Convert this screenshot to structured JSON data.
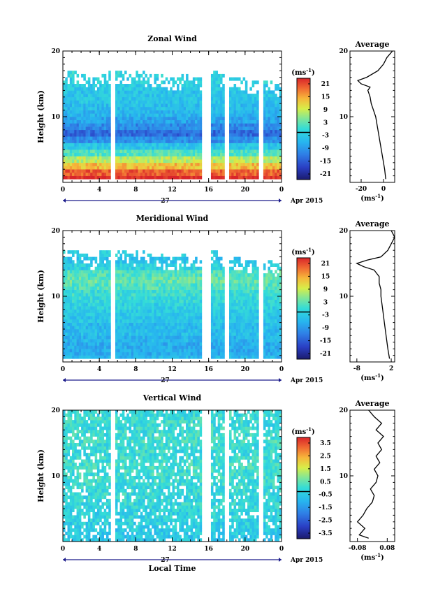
{
  "chart_data": [
    {
      "type": "heatmap",
      "id": "zonal",
      "title": "Zonal Wind",
      "ylabel": "Height (km)",
      "ylim": [
        0,
        20
      ],
      "xlim": [
        0,
        24
      ],
      "x_ticks": [
        "0",
        "4",
        "8",
        "12",
        "16",
        "20",
        "0"
      ],
      "y_ticks": [
        "10",
        "20"
      ],
      "date_label": "27",
      "month_label": "Apr 2015",
      "xlabel": "",
      "colorbar": {
        "unit": "(ms",
        "unit_sup": "-1",
        "unit_close": ")",
        "ticks": [
          "21",
          "15",
          "9",
          "3",
          "-3",
          "-9",
          "-15",
          "-21"
        ],
        "zero_mark": 0
      },
      "gaps_hours": [
        [
          5.3,
          5.8
        ],
        [
          15.2,
          16.3
        ],
        [
          17.8,
          18.2
        ],
        [
          21.6,
          22.0
        ]
      ],
      "data_top_km": [
        17,
        17,
        16.5,
        16,
        17,
        17,
        17,
        16.5,
        17,
        16.5,
        16.5,
        16,
        16,
        16.5,
        16,
        16,
        17,
        16.5,
        16,
        16,
        15.5,
        15.5,
        15.5,
        15
      ],
      "profile_rows": [
        24,
        20,
        14,
        8,
        2,
        -4,
        -10,
        -14,
        -11,
        -8,
        -6,
        -5,
        -4,
        -4,
        -3,
        -2,
        -1,
        0,
        1,
        2
      ],
      "average": {
        "title": "Average",
        "xlim": [
          -30,
          10
        ],
        "x_ticks": [
          "-20",
          "0"
        ],
        "x_tick_values": [
          -20,
          0
        ],
        "unit": "(ms",
        "unit_sup": "-1",
        "unit_close": ")",
        "y_ticks": [
          "10",
          "20"
        ],
        "heights": [
          0.5,
          2,
          4,
          6,
          8,
          10,
          11,
          12,
          13,
          13.5,
          14,
          14.5,
          15,
          15.5,
          16,
          17,
          18,
          19,
          20
        ],
        "values": [
          2,
          1,
          -1,
          -3,
          -5,
          -7,
          -9,
          -11,
          -12,
          -13,
          -14,
          -12,
          -20,
          -23,
          -15,
          -5,
          0,
          3,
          8
        ]
      }
    },
    {
      "type": "heatmap",
      "id": "meridional",
      "title": "Meridional Wind",
      "ylabel": "Height (km)",
      "ylim": [
        0,
        20
      ],
      "xlim": [
        0,
        24
      ],
      "x_ticks": [
        "0",
        "4",
        "8",
        "12",
        "16",
        "20",
        "0"
      ],
      "y_ticks": [
        "10",
        "20"
      ],
      "date_label": "27",
      "month_label": "Apr 2015",
      "xlabel": "",
      "colorbar": {
        "unit": "(ms",
        "unit_sup": "-1",
        "unit_close": ")",
        "ticks": [
          "21",
          "15",
          "9",
          "3",
          "-3",
          "-9",
          "-15",
          "-21"
        ],
        "zero_mark": 0
      },
      "gaps_hours": [
        [
          5.3,
          5.8
        ],
        [
          15.2,
          16.3
        ],
        [
          17.8,
          18.2
        ],
        [
          21.6,
          22.0
        ]
      ],
      "data_top_km": [
        17,
        17,
        16.5,
        16,
        17,
        17,
        17,
        16.5,
        17,
        16.5,
        16.5,
        16,
        16,
        16.5,
        16,
        16,
        17,
        16.5,
        16,
        16,
        15.5,
        15.5,
        15.5,
        15
      ],
      "profile_rows": [
        -6,
        -7,
        -7,
        -6,
        -5,
        -5,
        -4,
        -3,
        -2,
        -1,
        0,
        2,
        3,
        2,
        -2,
        -4,
        -2,
        0,
        1,
        1
      ],
      "average": {
        "title": "Average",
        "xlim": [
          -10,
          3
        ],
        "x_ticks": [
          "-8",
          "2"
        ],
        "x_tick_values": [
          -8,
          2
        ],
        "unit": "(ms",
        "unit_sup": "-1",
        "unit_close": ")",
        "y_ticks": [
          "10",
          "20"
        ],
        "heights": [
          0.5,
          2,
          4,
          6,
          8,
          10,
          11,
          12,
          13,
          14,
          14.5,
          15,
          15.5,
          16,
          17,
          18,
          19,
          20
        ],
        "values": [
          1.5,
          1,
          0.5,
          0,
          -0.5,
          -1,
          -1,
          -1.5,
          -1.5,
          -3,
          -6,
          -8,
          -5,
          -1,
          1,
          2,
          3,
          2
        ]
      }
    },
    {
      "type": "heatmap",
      "id": "vertical",
      "title": "Vertical Wind",
      "ylabel": "Height (km)",
      "ylim": [
        0,
        20
      ],
      "xlim": [
        0,
        24
      ],
      "x_ticks": [
        "0",
        "4",
        "8",
        "12",
        "16",
        "20",
        "0"
      ],
      "y_ticks": [
        "10",
        "20"
      ],
      "date_label": "27",
      "month_label": "Apr 2015",
      "xlabel": "Local Time",
      "colorbar": {
        "unit": "(ms",
        "unit_sup": "-1",
        "unit_close": ")",
        "ticks": [
          "3.5",
          "2.5",
          "1.5",
          "0.5",
          "-0.5",
          "-1.5",
          "-2.5",
          "-3.5"
        ],
        "zero_mark": 0
      },
      "gaps_hours": [
        [
          5.3,
          5.8
        ],
        [
          15.2,
          16.3
        ],
        [
          17.8,
          18.2
        ],
        [
          21.6,
          22.0
        ]
      ],
      "data_top_km": [
        20,
        20,
        20,
        20,
        20,
        20,
        20,
        20,
        20,
        20,
        20,
        20,
        20,
        20,
        20,
        20,
        20,
        20,
        20,
        20,
        20,
        20,
        20,
        20
      ],
      "profile_rows": [
        -0.6,
        -0.5,
        -0.4,
        -0.3,
        -0.3,
        -0.2,
        -0.2,
        -0.1,
        -0.1,
        0,
        0,
        0.1,
        0,
        -0.1,
        0,
        0.1,
        0,
        -0.1,
        0,
        -0.1
      ],
      "average": {
        "title": "Average",
        "xlim": [
          -0.12,
          0.12
        ],
        "x_ticks": [
          "-0.08",
          "0.08"
        ],
        "x_tick_values": [
          -0.08,
          0.08
        ],
        "unit": "(ms",
        "unit_sup": "-1",
        "unit_close": ")",
        "y_ticks": [
          "10",
          "20"
        ],
        "heights": [
          0.5,
          1,
          2,
          3,
          4,
          5,
          6,
          7,
          8,
          9,
          10,
          11,
          12,
          13,
          14,
          15,
          16,
          17,
          18,
          19,
          20
        ],
        "values": [
          -0.02,
          -0.07,
          -0.04,
          -0.08,
          -0.05,
          -0.03,
          0,
          0.01,
          -0.01,
          0.02,
          0.03,
          0.01,
          0.04,
          0.02,
          0.05,
          0.03,
          0.06,
          0.02,
          0.05,
          0.01,
          -0.02
        ]
      }
    }
  ]
}
